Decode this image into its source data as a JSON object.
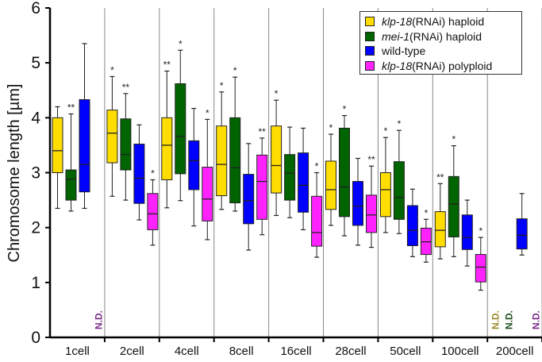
{
  "chart_data": {
    "type": "box",
    "ylabel": "Chromosome length [µm]",
    "ylim": [
      0,
      6
    ],
    "yticks": [
      "0",
      "1",
      "2",
      "3",
      "4",
      "5",
      "6"
    ],
    "grid": false,
    "legend_position": "top-right",
    "series": [
      {
        "name_italic": "klp-18",
        "name_rest": " (RNAi) haploid",
        "color": "#ffdd00",
        "nd_color": "#9a8a2a"
      },
      {
        "name_italic": "mei-1",
        "name_rest": " (RNAi) haploid",
        "color": "#006400",
        "nd_color": "#1d4d1d"
      },
      {
        "name_italic": "",
        "name_rest": "wild-type",
        "color": "#0000ff",
        "nd_color": "#1a1a8a"
      },
      {
        "name_italic": "klp-18",
        "name_rest": " (RNAi) polyploid",
        "color": "#ff22ff",
        "nd_color": "#7a2a8a"
      }
    ],
    "nd_label": "N.D.",
    "groups": [
      {
        "label": "1cell",
        "boxes": [
          [
            2.35,
            3.0,
            3.4,
            4.0,
            4.2,
            ""
          ],
          [
            2.3,
            2.5,
            2.88,
            3.05,
            4.07,
            "**"
          ],
          [
            2.35,
            2.65,
            3.15,
            4.33,
            5.35,
            ""
          ],
          null
        ]
      },
      {
        "label": "2cell",
        "boxes": [
          [
            2.57,
            3.18,
            3.72,
            4.14,
            4.75,
            "*"
          ],
          [
            2.5,
            3.05,
            3.33,
            3.98,
            4.44,
            "**"
          ],
          [
            2.14,
            2.44,
            2.9,
            3.52,
            3.87,
            ""
          ],
          [
            1.68,
            1.96,
            2.25,
            2.62,
            2.87,
            "*"
          ]
        ]
      },
      {
        "label": "4cell",
        "boxes": [
          [
            2.36,
            2.87,
            3.5,
            4.0,
            4.85,
            "**"
          ],
          [
            2.49,
            2.98,
            3.66,
            4.62,
            5.23,
            "*"
          ],
          [
            2.03,
            2.69,
            3.22,
            3.58,
            4.17,
            ""
          ],
          [
            1.78,
            2.12,
            2.52,
            3.1,
            3.97,
            "*"
          ]
        ]
      },
      {
        "label": "8cell",
        "boxes": [
          [
            2.33,
            2.58,
            3.15,
            3.85,
            4.47,
            "*"
          ],
          [
            2.3,
            2.45,
            3.09,
            4.0,
            4.74,
            "*"
          ],
          [
            1.59,
            2.07,
            2.49,
            2.97,
            3.53,
            ""
          ],
          [
            1.87,
            2.15,
            2.84,
            3.32,
            3.63,
            "**"
          ]
        ]
      },
      {
        "label": "16cell",
        "boxes": [
          [
            2.22,
            2.63,
            3.13,
            3.85,
            4.32,
            "*"
          ],
          [
            2.18,
            2.5,
            2.99,
            3.33,
            3.83,
            ""
          ],
          [
            1.96,
            2.28,
            2.77,
            3.36,
            3.81,
            ""
          ],
          [
            1.46,
            1.66,
            1.91,
            2.57,
            3.0,
            "*"
          ]
        ]
      },
      {
        "label": "28cell",
        "boxes": [
          [
            2.04,
            2.33,
            2.69,
            3.21,
            3.7,
            "*"
          ],
          [
            1.85,
            2.2,
            2.74,
            3.81,
            4.04,
            "*"
          ],
          [
            1.68,
            2.04,
            2.39,
            2.84,
            3.26,
            ""
          ],
          [
            1.64,
            1.91,
            2.23,
            2.59,
            3.12,
            "**"
          ]
        ]
      },
      {
        "label": "50cell",
        "boxes": [
          [
            1.91,
            2.2,
            2.69,
            3.0,
            3.64,
            "*"
          ],
          [
            1.89,
            2.15,
            2.55,
            3.2,
            3.77,
            "*"
          ],
          [
            1.47,
            1.67,
            1.95,
            2.4,
            2.7,
            ""
          ],
          [
            1.37,
            1.51,
            1.74,
            1.99,
            2.15,
            "*"
          ]
        ]
      },
      {
        "label": "100cell",
        "boxes": [
          [
            1.43,
            1.65,
            1.95,
            2.29,
            2.8,
            "**"
          ],
          [
            1.47,
            1.83,
            2.43,
            2.93,
            3.49,
            "*"
          ],
          [
            1.3,
            1.6,
            1.82,
            2.23,
            2.5,
            ""
          ],
          [
            0.86,
            1.01,
            1.28,
            1.51,
            1.82,
            "*"
          ]
        ]
      },
      {
        "label": "200cell",
        "boxes": [
          null,
          null,
          [
            1.5,
            1.61,
            1.86,
            2.16,
            2.62,
            ""
          ],
          null
        ]
      }
    ],
    "box_fields": [
      "whisker_low",
      "q1",
      "median",
      "q3",
      "whisker_high",
      "significance"
    ]
  }
}
